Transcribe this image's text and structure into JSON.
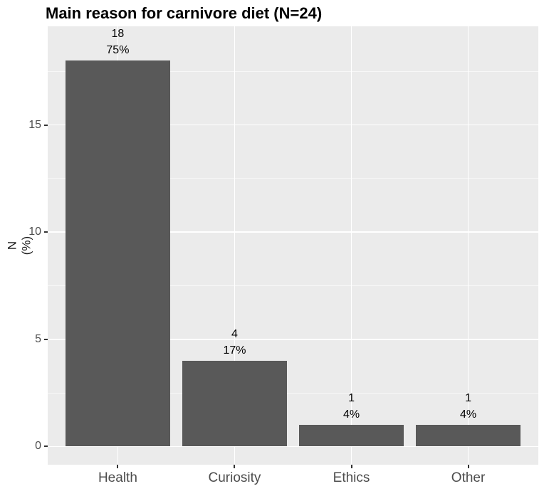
{
  "chart_data": {
    "type": "bar",
    "title": "Main reason for carnivore diet (N=24)",
    "ylabel_lines": [
      "N",
      "(%)"
    ],
    "xlabel": "",
    "categories": [
      "Health",
      "Curiosity",
      "Ethics",
      "Other"
    ],
    "values": [
      18,
      4,
      1,
      1
    ],
    "value_labels": [
      "18",
      "4",
      "1",
      "1"
    ],
    "percent_labels": [
      "75%",
      "17%",
      "4%",
      "4%"
    ],
    "yticks": [
      0,
      5,
      10,
      15
    ],
    "ytick_labels": [
      "0",
      "5",
      "10",
      "15"
    ],
    "ylim": [
      -0.85,
      19.6
    ],
    "grid": true,
    "legend_position": "none",
    "colors": {
      "bar_fill": "#595959",
      "panel_background": "#EBEBEB",
      "grid_major": "#FFFFFF",
      "grid_minor": "#FFFFFF",
      "tick_mark": "#333333",
      "tick_label": "#4D4D4D",
      "title": "#000000",
      "bar_label": "#000000"
    }
  }
}
